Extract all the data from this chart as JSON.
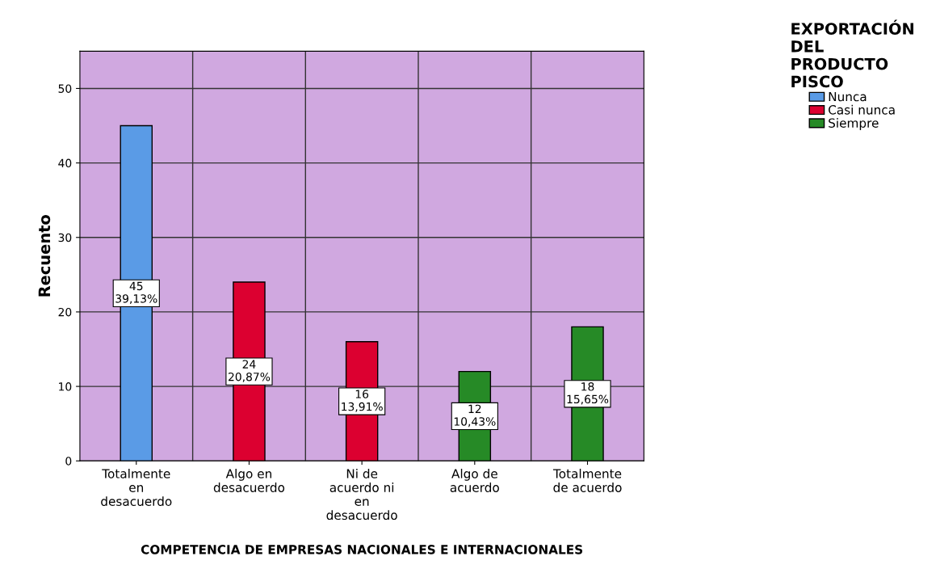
{
  "chart_data": {
    "type": "bar",
    "xlabel": "COMPETENCIA DE EMPRESAS NACIONALES E INTERNACIONALES",
    "ylabel": "Recuento",
    "legend_title": "EXPORTACIÓN\nDEL\nPRODUCTO\nPISCO",
    "categories": [
      "Totalmente\nen\ndesacuerdo",
      "Algo en\ndesacuerdo",
      "Ni de\nacuerdo ni\nen\ndesacuerdo",
      "Algo de\nacuerdo",
      "Totalmente\nde acuerdo"
    ],
    "series": [
      {
        "name": "Nunca",
        "color": "#5a9be6",
        "values": [
          45,
          null,
          null,
          null,
          null
        ],
        "value_labels": [
          "45\n39,13%",
          null,
          null,
          null,
          null
        ]
      },
      {
        "name": "Casi nunca",
        "color": "#dc0030",
        "values": [
          null,
          24,
          16,
          null,
          null
        ],
        "value_labels": [
          null,
          "24\n20,87%",
          "16\n13,91%",
          null,
          null
        ]
      },
      {
        "name": "Siempre",
        "color": "#268a26",
        "values": [
          null,
          null,
          null,
          12,
          18
        ],
        "value_labels": [
          null,
          null,
          null,
          "12\n10,43%",
          "18\n15,65%"
        ]
      }
    ],
    "ylim": [
      0,
      55
    ],
    "yticks": [
      0,
      10,
      20,
      30,
      40,
      50
    ],
    "grid": true,
    "legend": "top right"
  }
}
